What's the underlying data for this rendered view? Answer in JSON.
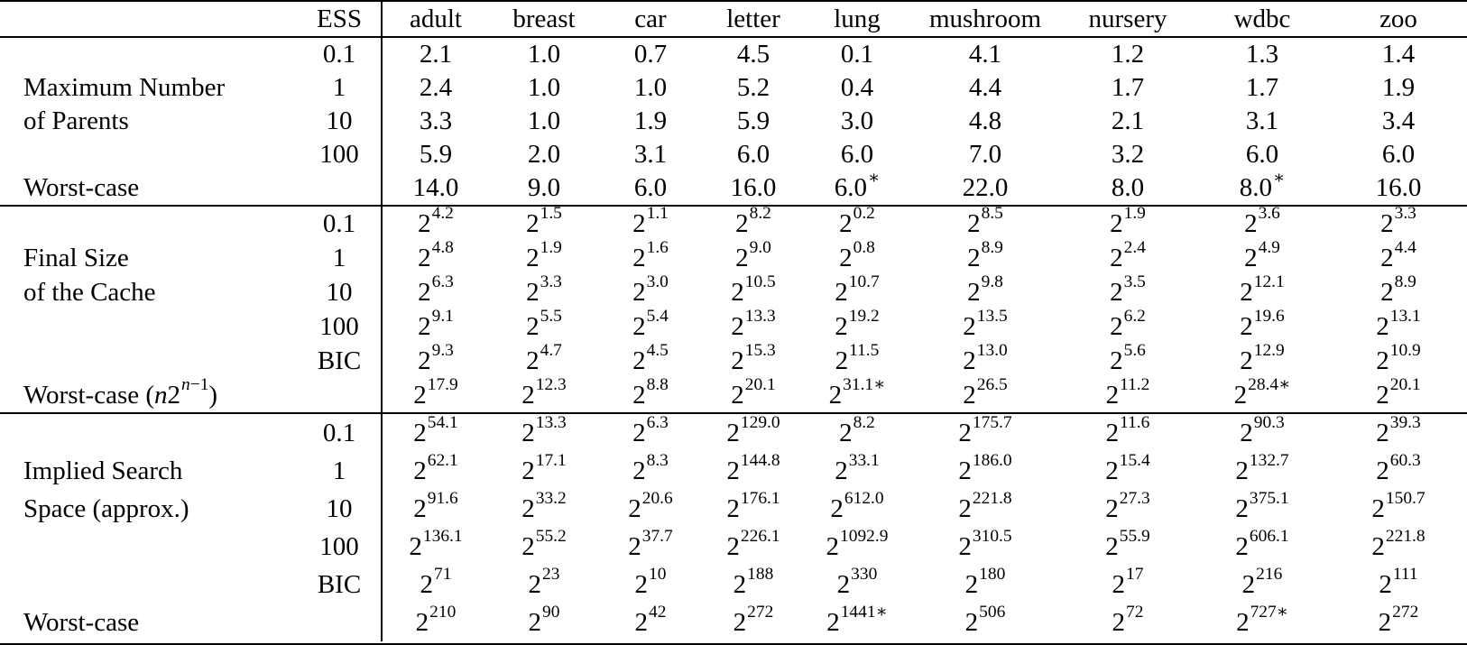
{
  "table": {
    "header": {
      "ess_label": "ESS",
      "datasets": [
        "adult",
        "breast",
        "car",
        "letter",
        "lung",
        "mushroom",
        "nursery",
        "wdbc",
        "zoo"
      ]
    },
    "sections": [
      {
        "name": "maximum-number-of-parents",
        "rows": [
          {
            "label": "",
            "ess": "0.1",
            "values": [
              "2.1",
              "1.0",
              "0.7",
              "4.5",
              "0.1",
              "4.1",
              "1.2",
              "1.3",
              "1.4"
            ]
          },
          {
            "label": "Maximum Number",
            "ess": "1",
            "values": [
              "2.4",
              "1.0",
              "1.0",
              "5.2",
              "0.4",
              "4.4",
              "1.7",
              "1.7",
              "1.9"
            ]
          },
          {
            "label": "of Parents",
            "ess": "10",
            "values": [
              "3.3",
              "1.0",
              "1.9",
              "5.9",
              "3.0",
              "4.8",
              "2.1",
              "3.1",
              "3.4"
            ]
          },
          {
            "label": "",
            "ess": "100",
            "values": [
              "5.9",
              "2.0",
              "3.1",
              "6.0",
              "6.0",
              "7.0",
              "3.2",
              "6.0",
              "6.0"
            ]
          },
          {
            "label": "Worst-case",
            "ess": "",
            "values": [
              "14.0",
              "9.0",
              "6.0",
              "16.0",
              "6.0*",
              "22.0",
              "8.0",
              "8.0*",
              "16.0"
            ]
          }
        ]
      },
      {
        "name": "final-size-of-the-cache",
        "rows": [
          {
            "label": "",
            "ess": "0.1",
            "values": [
              "2^4.2",
              "2^1.5",
              "2^1.1",
              "2^8.2",
              "2^0.2",
              "2^8.5",
              "2^1.9",
              "2^3.6",
              "2^3.3"
            ]
          },
          {
            "label": "Final Size",
            "ess": "1",
            "values": [
              "2^4.8",
              "2^1.9",
              "2^1.6",
              "2^9.0",
              "2^0.8",
              "2^8.9",
              "2^2.4",
              "2^4.9",
              "2^4.4"
            ]
          },
          {
            "label": "of the Cache",
            "ess": "10",
            "values": [
              "2^6.3",
              "2^3.3",
              "2^3.0",
              "2^10.5",
              "2^10.7",
              "2^9.8",
              "2^3.5",
              "2^12.1",
              "2^8.9"
            ]
          },
          {
            "label": "",
            "ess": "100",
            "values": [
              "2^9.1",
              "2^5.5",
              "2^5.4",
              "2^13.3",
              "2^19.2",
              "2^13.5",
              "2^6.2",
              "2^19.6",
              "2^13.1"
            ]
          },
          {
            "label": "",
            "ess": "BIC",
            "values": [
              "2^9.3",
              "2^4.7",
              "2^4.5",
              "2^15.3",
              "2^11.5",
              "2^13.0",
              "2^5.6",
              "2^12.9",
              "2^10.9"
            ]
          },
          {
            "label": {
              "pre": "Worst-case (",
              "math_base": "n2",
              "math_sup": "n−1",
              "post": ")"
            },
            "ess": "",
            "values": [
              "2^17.9",
              "2^12.3",
              "2^8.8",
              "2^20.1",
              "2^31.1*",
              "2^26.5",
              "2^11.2",
              "2^28.4*",
              "2^20.1"
            ]
          }
        ]
      },
      {
        "name": "implied-search-space-approx",
        "rows": [
          {
            "label": "",
            "ess": "0.1",
            "values": [
              "2^54.1",
              "2^13.3",
              "2^6.3",
              "2^129.0",
              "2^8.2",
              "2^175.7",
              "2^11.6",
              "2^90.3",
              "2^39.3"
            ]
          },
          {
            "label": "Implied Search",
            "ess": "1",
            "values": [
              "2^62.1",
              "2^17.1",
              "2^8.3",
              "2^144.8",
              "2^33.1",
              "2^186.0",
              "2^15.4",
              "2^132.7",
              "2^60.3"
            ]
          },
          {
            "label": "Space (approx.)",
            "ess": "10",
            "values": [
              "2^91.6",
              "2^33.2",
              "2^20.6",
              "2^176.1",
              "2^612.0",
              "2^221.8",
              "2^27.3",
              "2^375.1",
              "2^150.7"
            ]
          },
          {
            "label": "",
            "ess": "100",
            "values": [
              "2^136.1",
              "2^55.2",
              "2^37.7",
              "2^226.1",
              "2^1092.9",
              "2^310.5",
              "2^55.9",
              "2^606.1",
              "2^221.8"
            ]
          },
          {
            "label": "",
            "ess": "BIC",
            "values": [
              "2^71",
              "2^23",
              "2^10",
              "2^188",
              "2^330",
              "2^180",
              "2^17",
              "2^216",
              "2^111"
            ]
          },
          {
            "label": "Worst-case",
            "ess": "",
            "values": [
              "2^210",
              "2^90",
              "2^42",
              "2^272",
              "2^1441*",
              "2^506",
              "2^72",
              "2^727*",
              "2^272"
            ]
          }
        ]
      }
    ]
  }
}
